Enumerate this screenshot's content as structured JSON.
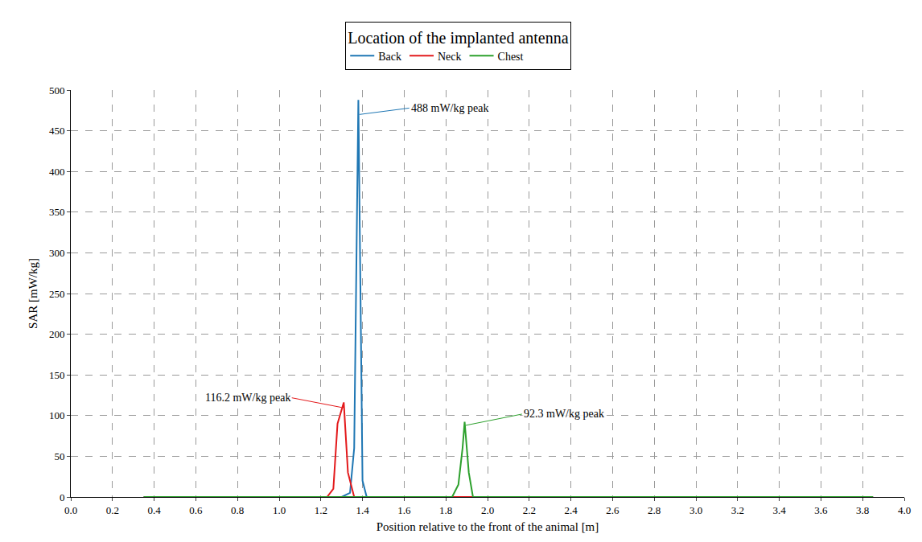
{
  "chart_data": {
    "type": "line",
    "legend_title": "Location of the implanted antenna",
    "legend": "top",
    "grid": true,
    "x_label": "Position relative to the front of the animal [m]",
    "y_label": "SAR [mW/kg]",
    "xlim": [
      0,
      4
    ],
    "ylim": [
      0,
      500
    ],
    "xticks": [
      {
        "value": 0,
        "label": "0.0"
      },
      0.2,
      0.4,
      0.6,
      0.8,
      {
        "value": 1,
        "label": "1.0"
      },
      1.2,
      1.4,
      1.6,
      1.8,
      {
        "value": 2,
        "label": "2.0"
      },
      2.2,
      2.4,
      2.6,
      2.8,
      {
        "value": 3,
        "label": "3.0"
      },
      3.2,
      3.4,
      3.6,
      3.8,
      {
        "value": 4,
        "label": "4.0"
      }
    ],
    "yticks": [
      0,
      50,
      100,
      150,
      200,
      250,
      300,
      350,
      400,
      450,
      500
    ],
    "series": [
      {
        "name": "Back",
        "color": "#1f77b4",
        "x": [
          0.35,
          1.3,
          1.34,
          1.36,
          1.38,
          1.4,
          1.42,
          3.85
        ],
        "values": [
          0,
          0,
          5,
          60,
          488,
          20,
          0,
          0
        ]
      },
      {
        "name": "Neck",
        "color": "#e31a1c",
        "x": [
          0.35,
          1.23,
          1.26,
          1.28,
          1.31,
          1.33,
          1.36,
          3.85
        ],
        "values": [
          0,
          0,
          10,
          90,
          116.2,
          30,
          0,
          0
        ]
      },
      {
        "name": "Chest",
        "color": "#2ca02c",
        "x": [
          0.35,
          1.83,
          1.86,
          1.88,
          1.89,
          1.91,
          1.93,
          3.85
        ],
        "values": [
          0,
          0,
          15,
          60,
          92.3,
          30,
          0,
          0
        ]
      }
    ],
    "annotations": [
      {
        "text": "488 mW/kg peak",
        "x": 1.385,
        "y": 470,
        "color": "#1f77b4"
      },
      {
        "text": "116.2 mW/kg peak",
        "x": 1.3,
        "y": 110,
        "color": "#e31a1c"
      },
      {
        "text": "92.3 mW/kg peak",
        "x": 1.895,
        "y": 88,
        "color": "#2ca02c"
      }
    ]
  }
}
